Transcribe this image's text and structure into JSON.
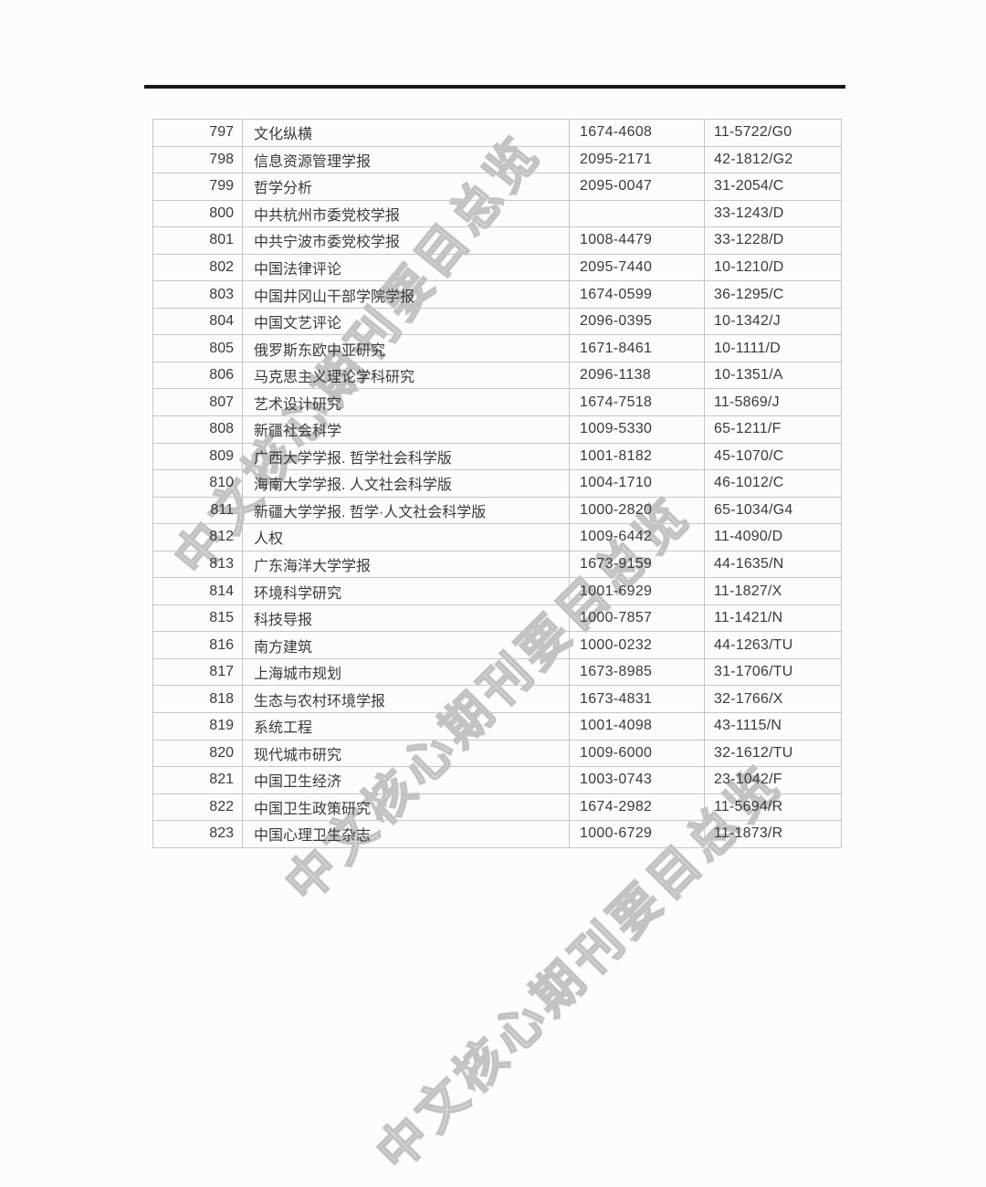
{
  "page": {
    "background_color": "#fcfcfc",
    "top_rule_color": "#181818",
    "table_border_color": "#c6c6c6",
    "text_color": "#3a3a3a",
    "watermark_color": "#949494"
  },
  "watermark": {
    "text": "中文核心期刊要目总览"
  },
  "table": {
    "rows": [
      {
        "no": "797",
        "name": "文化纵横",
        "issn": "1674-4608",
        "cn": "11-5722/G0"
      },
      {
        "no": "798",
        "name": "信息资源管理学报",
        "issn": "2095-2171",
        "cn": "42-1812/G2"
      },
      {
        "no": "799",
        "name": "哲学分析",
        "issn": "2095-0047",
        "cn": "31-2054/C"
      },
      {
        "no": "800",
        "name": "中共杭州市委党校学报",
        "issn": "",
        "cn": "33-1243/D"
      },
      {
        "no": "801",
        "name": "中共宁波市委党校学报",
        "issn": "1008-4479",
        "cn": "33-1228/D"
      },
      {
        "no": "802",
        "name": "中国法律评论",
        "issn": "2095-7440",
        "cn": "10-1210/D"
      },
      {
        "no": "803",
        "name": "中国井冈山干部学院学报",
        "issn": "1674-0599",
        "cn": "36-1295/C"
      },
      {
        "no": "804",
        "name": "中国文艺评论",
        "issn": "2096-0395",
        "cn": "10-1342/J"
      },
      {
        "no": "805",
        "name": "俄罗斯东欧中亚研究",
        "issn": "1671-8461",
        "cn": "10-1111/D"
      },
      {
        "no": "806",
        "name": "马克思主义理论学科研究",
        "issn": "2096-1138",
        "cn": "10-1351/A"
      },
      {
        "no": "807",
        "name": "艺术设计研究",
        "issn": "1674-7518",
        "cn": "11-5869/J"
      },
      {
        "no": "808",
        "name": "新疆社会科学",
        "issn": "1009-5330",
        "cn": "65-1211/F"
      },
      {
        "no": "809",
        "name": "广西大学学报. 哲学社会科学版",
        "issn": "1001-8182",
        "cn": "45-1070/C"
      },
      {
        "no": "810",
        "name": "海南大学学报. 人文社会科学版",
        "issn": "1004-1710",
        "cn": "46-1012/C"
      },
      {
        "no": "811",
        "name": "新疆大学学报. 哲学·人文社会科学版",
        "issn": "1000-2820",
        "cn": "65-1034/G4"
      },
      {
        "no": "812",
        "name": "人权",
        "issn": "1009-6442",
        "cn": "11-4090/D"
      },
      {
        "no": "813",
        "name": "广东海洋大学学报",
        "issn": "1673-9159",
        "cn": "44-1635/N"
      },
      {
        "no": "814",
        "name": "环境科学研究",
        "issn": "1001-6929",
        "cn": "11-1827/X"
      },
      {
        "no": "815",
        "name": "科技导报",
        "issn": "1000-7857",
        "cn": "11-1421/N"
      },
      {
        "no": "816",
        "name": "南方建筑",
        "issn": "1000-0232",
        "cn": "44-1263/TU"
      },
      {
        "no": "817",
        "name": "上海城市规划",
        "issn": "1673-8985",
        "cn": "31-1706/TU"
      },
      {
        "no": "818",
        "name": "生态与农村环境学报",
        "issn": "1673-4831",
        "cn": "32-1766/X"
      },
      {
        "no": "819",
        "name": "系统工程",
        "issn": "1001-4098",
        "cn": "43-1115/N"
      },
      {
        "no": "820",
        "name": "现代城市研究",
        "issn": "1009-6000",
        "cn": "32-1612/TU"
      },
      {
        "no": "821",
        "name": "中国卫生经济",
        "issn": "1003-0743",
        "cn": "23-1042/F"
      },
      {
        "no": "822",
        "name": "中国卫生政策研究",
        "issn": "1674-2982",
        "cn": "11-5694/R"
      },
      {
        "no": "823",
        "name": "中国心理卫生杂志",
        "issn": "1000-6729",
        "cn": "11-1873/R"
      }
    ]
  }
}
